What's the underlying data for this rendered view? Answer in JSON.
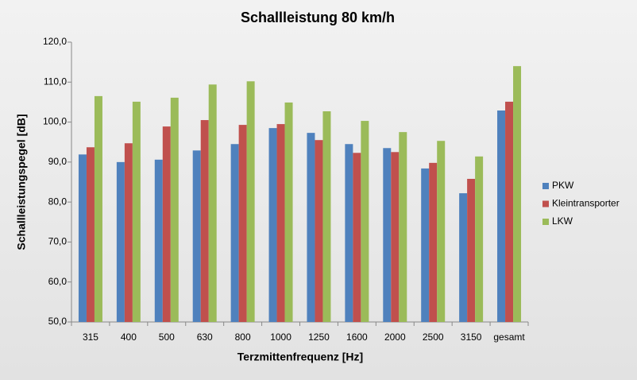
{
  "chart_data": {
    "type": "bar",
    "title": "Schallleistung 80 km/h",
    "x_label": "Terzmittenfrequenz [Hz]",
    "y_label": "Schallleistungspegel [dB]",
    "categories": [
      "315",
      "400",
      "500",
      "630",
      "800",
      "1000",
      "1250",
      "1600",
      "2000",
      "2500",
      "3150",
      "gesamt"
    ],
    "series": [
      {
        "name": "PKW",
        "color": "#4f81bd",
        "values": [
          91.9,
          90.0,
          90.6,
          92.9,
          94.5,
          98.5,
          97.3,
          94.5,
          93.5,
          88.4,
          82.2,
          102.9
        ]
      },
      {
        "name": "Kleintransporter",
        "color": "#c0504d",
        "values": [
          93.7,
          94.7,
          98.9,
          100.5,
          99.3,
          99.5,
          95.5,
          92.3,
          92.5,
          89.8,
          85.8,
          105.1
        ]
      },
      {
        "name": "LKW",
        "color": "#9bbb59",
        "values": [
          106.5,
          105.1,
          106.1,
          109.4,
          110.2,
          104.9,
          102.7,
          100.3,
          97.5,
          95.3,
          91.4,
          114.0
        ]
      }
    ],
    "ylim": [
      50,
      120
    ],
    "yticks": [
      {
        "value": 50,
        "label": "50,0"
      },
      {
        "value": 60,
        "label": "60,0"
      },
      {
        "value": 70,
        "label": "70,0"
      },
      {
        "value": 80,
        "label": "80,0"
      },
      {
        "value": 90,
        "label": "90,0"
      },
      {
        "value": 100,
        "label": "100,0"
      },
      {
        "value": 110,
        "label": "110,0"
      },
      {
        "value": 120,
        "label": "120,0"
      }
    ],
    "grid": false,
    "legend": "right"
  }
}
